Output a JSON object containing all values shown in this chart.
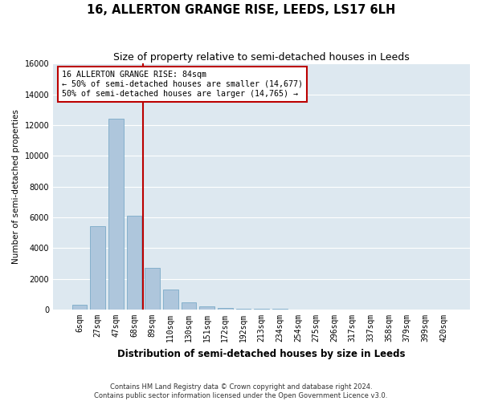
{
  "title": "16, ALLERTON GRANGE RISE, LEEDS, LS17 6LH",
  "subtitle": "Size of property relative to semi-detached houses in Leeds",
  "xlabel": "Distribution of semi-detached houses by size in Leeds",
  "ylabel": "Number of semi-detached properties",
  "bar_labels": [
    "6sqm",
    "27sqm",
    "47sqm",
    "68sqm",
    "89sqm",
    "110sqm",
    "130sqm",
    "151sqm",
    "172sqm",
    "192sqm",
    "213sqm",
    "234sqm",
    "254sqm",
    "275sqm",
    "296sqm",
    "317sqm",
    "337sqm",
    "358sqm",
    "379sqm",
    "399sqm",
    "420sqm"
  ],
  "bar_values": [
    300,
    5400,
    12400,
    6100,
    2700,
    1300,
    450,
    200,
    100,
    70,
    50,
    30,
    20,
    10,
    0,
    0,
    0,
    0,
    0,
    0,
    0
  ],
  "bar_color": "#aec6dc",
  "bar_edge_color": "#7aaac8",
  "vline_pos": 3.5,
  "vline_color": "#bb0000",
  "annotation_line1": "16 ALLERTON GRANGE RISE: 84sqm",
  "annotation_line2": "← 50% of semi-detached houses are smaller (14,677)",
  "annotation_line3": "50% of semi-detached houses are larger (14,765) →",
  "annotation_box_edgecolor": "#bb0000",
  "ylim_max": 16000,
  "ytick_step": 2000,
  "bg_color": "#dde8f0",
  "grid_color": "#ffffff",
  "footer_line1": "Contains HM Land Registry data © Crown copyright and database right 2024.",
  "footer_line2": "Contains public sector information licensed under the Open Government Licence v3.0."
}
